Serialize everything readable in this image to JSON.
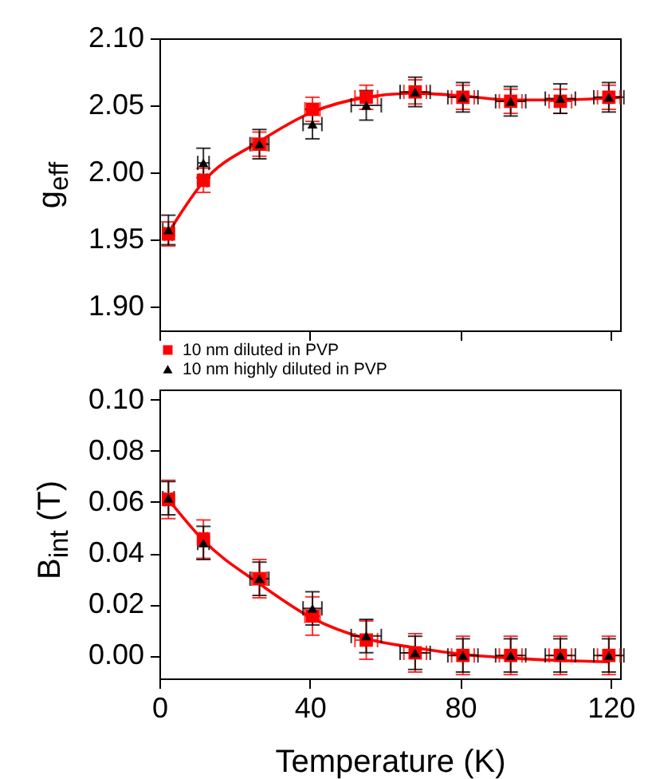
{
  "chart_data": [
    {
      "type": "scatter",
      "ylabel": "g$_{eff}$",
      "x": [
        2.4,
        11.7,
        26.6,
        40.7,
        55,
        68,
        80.7,
        93.4,
        106.6,
        119.5
      ],
      "xlim": [
        0,
        122.5
      ],
      "xticks": [
        0,
        40,
        80,
        120
      ],
      "ylim": [
        1.882,
        2.1
      ],
      "yticks": [
        {
          "value": 1.9,
          "label": "1.90"
        },
        {
          "value": 1.95,
          "label": "1.95"
        },
        {
          "value": 2.0,
          "label": "2.00"
        },
        {
          "value": 2.05,
          "label": "2.05"
        },
        {
          "value": 2.1,
          "label": "2.10"
        }
      ],
      "tick_labels": "y",
      "grid": false,
      "legend": "bottom",
      "series": [
        {
          "name": "10 nm diluted in PVP",
          "color": "#ff0000",
          "marker": "square",
          "values": [
            1.954,
            1.994,
            2.021,
            2.047,
            2.056,
            2.06,
            2.056,
            2.053,
            2.053,
            2.056
          ],
          "errors": [
            0.009,
            0.009,
            0.009,
            0.009,
            0.009,
            0.009,
            0.009,
            0.009,
            0.009,
            0.009
          ],
          "xerrors": [
            1,
            1,
            2,
            2,
            3,
            3,
            3,
            3,
            3,
            3
          ]
        },
        {
          "name": "10 nm highly diluted in PVP",
          "color": "#000000",
          "marker": "triangle",
          "values": [
            1.957,
            2.007,
            2.021,
            2.036,
            2.05,
            2.06,
            2.056,
            2.053,
            2.055,
            2.056
          ],
          "errors": [
            0.011,
            0.011,
            0.011,
            0.011,
            0.011,
            0.011,
            0.011,
            0.011,
            0.011,
            0.011
          ],
          "xerrors": [
            1.5,
            1.5,
            2.5,
            2.5,
            4,
            4,
            4,
            4,
            4,
            4
          ]
        },
        {
          "type": "line",
          "color": "#ff0000",
          "marker": "none",
          "x": [
            2.4,
            11.7,
            26.6,
            40.7,
            55,
            68,
            80.7,
            93.4,
            106.6,
            122.5
          ],
          "values": [
            1.955,
            1.993,
            2.023,
            2.045,
            2.056,
            2.059,
            2.057,
            2.054,
            2.054,
            2.056
          ]
        }
      ]
    },
    {
      "type": "scatter",
      "xlabel": "Temperature (K)",
      "ylabel": "B$_{int}$ (T)",
      "x": [
        2.4,
        11.7,
        26.6,
        40.7,
        55,
        68,
        80.7,
        93.4,
        106.6,
        119.5
      ],
      "xlim": [
        0,
        122.5
      ],
      "xticks": [
        0,
        40,
        80,
        120
      ],
      "ylim": [
        -0.009,
        0.104
      ],
      "yticks": [
        {
          "value": 0,
          "label": "0.00"
        },
        {
          "value": 0.02,
          "label": "0.02"
        },
        {
          "value": 0.04,
          "label": "0.04"
        },
        {
          "value": 0.06,
          "label": "0.06"
        },
        {
          "value": 0.08,
          "label": "0.08"
        },
        {
          "value": 0.1,
          "label": "0.10"
        }
      ],
      "grid": false,
      "series": [
        {
          "color": "#ff0000",
          "marker": "square",
          "values": [
            0.061,
            0.0455,
            0.03,
            0.0154,
            0.006,
            0.001,
            0,
            0,
            0,
            0
          ],
          "errors": [
            0.0075,
            0.0075,
            0.0075,
            0.0075,
            0.0075,
            0.0075,
            0.0075,
            0.0075,
            0.0075,
            0.0075
          ],
          "xerrors": [
            1,
            1,
            2,
            2,
            3,
            3,
            3,
            3,
            3,
            3
          ]
        },
        {
          "color": "#000000",
          "marker": "triangle",
          "values": [
            0.0615,
            0.044,
            0.03,
            0.0184,
            0.0076,
            0.001,
            0,
            0,
            0,
            0
          ],
          "errors": [
            0.0065,
            0.0065,
            0.0065,
            0.0065,
            0.0065,
            0.0065,
            0.0065,
            0.0065,
            0.0065,
            0.0065
          ],
          "xerrors": [
            1.5,
            1.5,
            2.5,
            2.5,
            4,
            4,
            4,
            4,
            4,
            4
          ]
        },
        {
          "type": "line",
          "color": "#ff0000",
          "marker": "none",
          "x": [
            2.4,
            11.7,
            26.6,
            40.7,
            55,
            68,
            80,
            93,
            107,
            119.5
          ],
          "values": [
            0.061,
            0.045,
            0.028,
            0.0145,
            0.0065,
            0.003,
            0.0005,
            -0.001,
            -0.002,
            -0.0025
          ]
        }
      ]
    }
  ]
}
